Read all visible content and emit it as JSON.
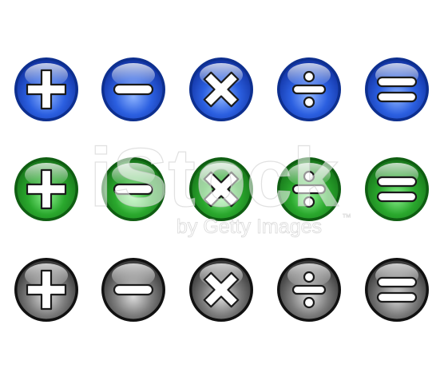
{
  "rows": [
    {
      "name": "blue",
      "colors": {
        "rim": "#0d2f8f",
        "base": "#2b5fe0",
        "light": "#8eb4ff",
        "dark": "#1437a8"
      },
      "buttons": [
        "plus-icon",
        "minus-icon",
        "multiply-icon",
        "divide-icon",
        "equals-icon"
      ]
    },
    {
      "name": "green",
      "colors": {
        "rim": "#0f5e12",
        "base": "#2aa82d",
        "light": "#8df28f",
        "dark": "#197a1c"
      },
      "buttons": [
        "plus-icon",
        "minus-icon",
        "multiply-icon",
        "divide-icon",
        "equals-icon"
      ]
    },
    {
      "name": "gray",
      "colors": {
        "rim": "#111111",
        "base": "#7d7d7d",
        "light": "#dcdcdc",
        "dark": "#3d3d3d"
      },
      "buttons": [
        "plus-icon",
        "minus-icon",
        "multiply-icon",
        "divide-icon",
        "equals-icon"
      ]
    }
  ],
  "watermark": {
    "brand": "iStock",
    "credit": "by Getty Images",
    "tm": "™"
  }
}
